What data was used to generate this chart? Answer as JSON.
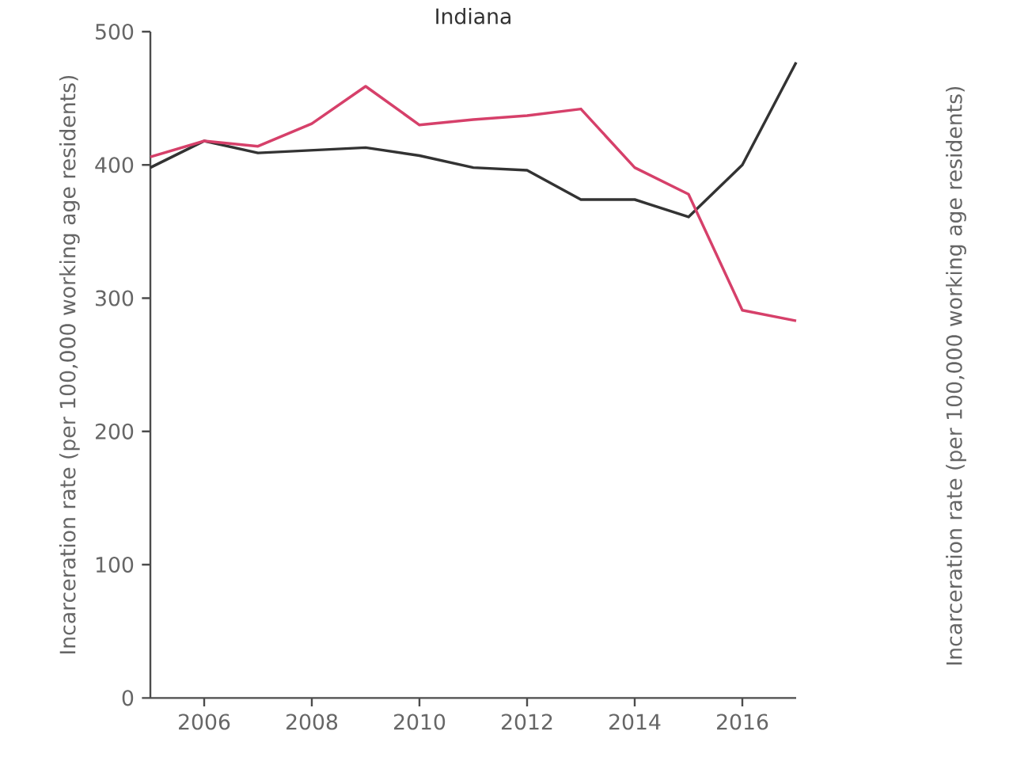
{
  "chart_data": [
    {
      "type": "line",
      "title": "Indiana",
      "ylabel": "Incarceration rate (per 100,000 working age residents)",
      "x": [
        2005,
        2006,
        2007,
        2008,
        2009,
        2010,
        2011,
        2012,
        2013,
        2014,
        2015,
        2016,
        2017
      ],
      "series": [
        {
          "color": "#333333",
          "values": [
            398,
            418,
            409,
            411,
            413,
            407,
            398,
            396,
            374,
            374,
            361,
            400,
            477
          ]
        },
        {
          "color": "#d6406a",
          "values": [
            406,
            418,
            414,
            431,
            459,
            430,
            434,
            437,
            442,
            398,
            378,
            291,
            283
          ]
        }
      ],
      "xlim": [
        2005,
        2017
      ],
      "xticks": [
        2006,
        2008,
        2010,
        2012,
        2014,
        2016
      ],
      "ylim": [
        0,
        500
      ],
      "yticks": [
        0,
        100,
        200,
        300,
        400,
        500
      ]
    },
    {
      "type": "other",
      "ylabel": "Incarceration rate (per 100,000 working age residents)"
    }
  ]
}
